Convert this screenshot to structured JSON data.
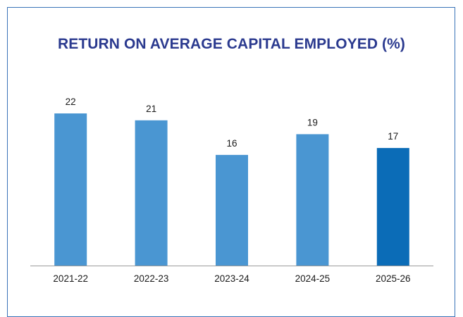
{
  "chart_data": {
    "type": "bar",
    "title": "RETURN ON AVERAGE CAPITAL EMPLOYED (%)",
    "categories": [
      "2021-22",
      "2022-23",
      "2023-24",
      "2024-25",
      "2025-26"
    ],
    "values": [
      22,
      21,
      16,
      19,
      17
    ],
    "xlabel": "",
    "ylabel": "",
    "ylim": [
      0,
      22
    ],
    "grid": false,
    "colors": {
      "default": "#4a96d2",
      "highlight": "#0b6cb7",
      "title": "#2b3a8f",
      "border": "#3a73b8",
      "axis": "#9b9b9b"
    },
    "highlight_index": 4
  }
}
